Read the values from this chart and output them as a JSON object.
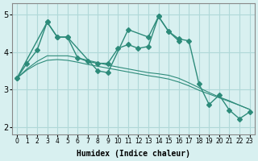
{
  "x": [
    0,
    1,
    2,
    3,
    4,
    5,
    6,
    7,
    8,
    9,
    10,
    11,
    12,
    13,
    14,
    15,
    16,
    17,
    18,
    19,
    20,
    21,
    22,
    23
  ],
  "line1": [
    3.3,
    3.7,
    4.05,
    4.8,
    4.4,
    4.4,
    null,
    null,
    3.5,
    3.45,
    null,
    4.6,
    null,
    4.4,
    4.95,
    4.55,
    4.3,
    null,
    null,
    null,
    null,
    null,
    null,
    null
  ],
  "line2": [
    3.3,
    null,
    null,
    4.8,
    4.4,
    4.4,
    3.85,
    3.75,
    3.7,
    3.7,
    4.1,
    4.2,
    4.1,
    4.15,
    4.95,
    4.55,
    4.35,
    4.3,
    3.15,
    2.6,
    2.85,
    2.45,
    2.22,
    2.4
  ],
  "line3_straight": [
    3.3,
    3.55,
    3.75,
    3.9,
    3.9,
    3.9,
    3.85,
    3.78,
    3.72,
    3.65,
    3.6,
    3.55,
    3.5,
    3.45,
    3.42,
    3.38,
    3.3,
    3.18,
    3.05,
    2.92,
    2.8,
    2.7,
    2.58,
    2.47
  ],
  "line4_straight": [
    3.3,
    3.52,
    3.68,
    3.78,
    3.8,
    3.78,
    3.73,
    3.67,
    3.62,
    3.57,
    3.52,
    3.47,
    3.42,
    3.37,
    3.33,
    3.28,
    3.2,
    3.1,
    2.98,
    2.88,
    2.78,
    2.68,
    2.58,
    2.47
  ],
  "color": "#2d8b7a",
  "bg_color": "#d8f0f0",
  "grid_color": "#b0d8d8",
  "xlabel": "Humidex (Indice chaleur)",
  "ylim": [
    1.8,
    5.3
  ],
  "xlim": [
    0,
    23
  ],
  "yticks": [
    2,
    3,
    4,
    5
  ],
  "xtick_labels": [
    "0",
    "1",
    "2",
    "3",
    "4",
    "5",
    "6",
    "7",
    "8",
    "9",
    "10",
    "11",
    "12",
    "13",
    "14",
    "15",
    "16",
    "17",
    "18",
    "19",
    "20",
    "21",
    "22",
    "23"
  ],
  "marker": "D",
  "markersize": 3
}
